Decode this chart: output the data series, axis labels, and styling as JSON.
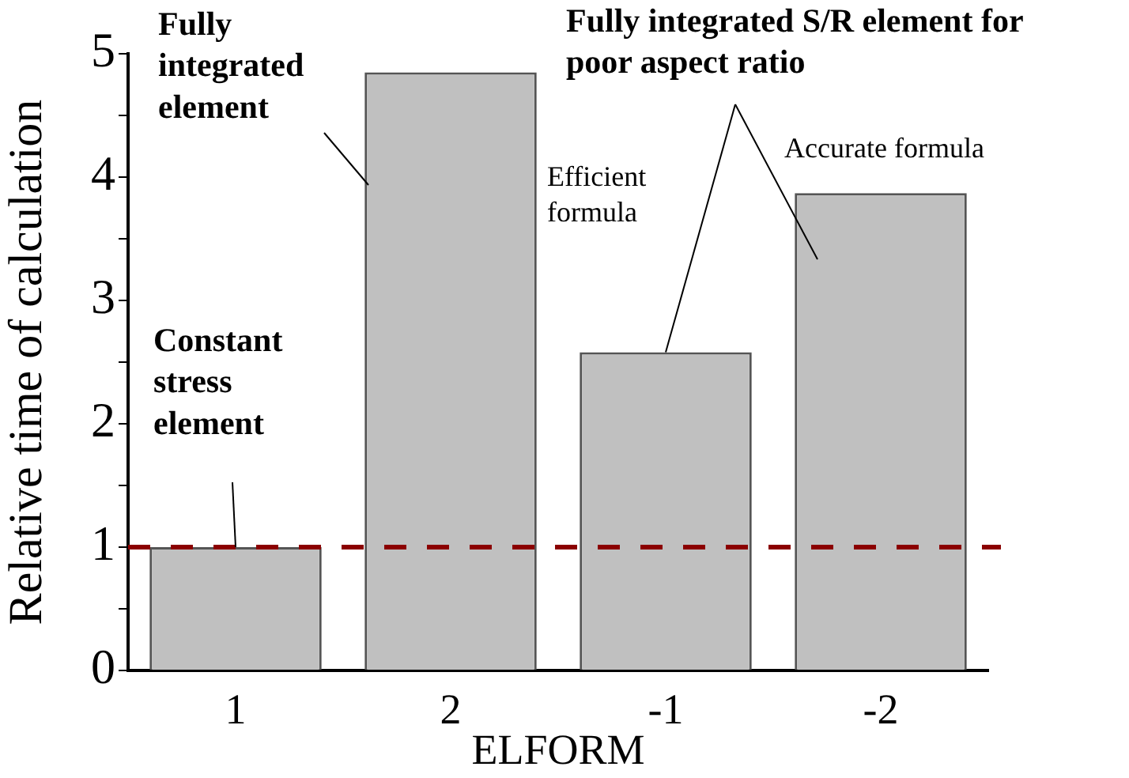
{
  "chart_data": {
    "type": "bar",
    "xlabel": "ELFORM",
    "ylabel": "Relative time of calculation",
    "categories": [
      "1",
      "2",
      "-1",
      "-2"
    ],
    "values": [
      1.0,
      4.85,
      2.58,
      3.87
    ],
    "color": "#c0c0c0",
    "ylim": [
      0,
      5
    ],
    "yticks": [
      0,
      {
        "value": 0.5,
        "label": null
      },
      1,
      {
        "value": 1.5,
        "label": null
      },
      2,
      {
        "value": 2.5,
        "label": null
      },
      3,
      {
        "value": 3.5,
        "label": null
      },
      4,
      {
        "value": 4.5,
        "label": null
      },
      5
    ],
    "ref_lines": [
      {
        "axis": "y",
        "value": 1,
        "color": "#8b0000",
        "line_style": "dashed"
      }
    ],
    "annotations": [
      "Fully integrated element",
      {
        "text": "Constant stress element",
        "x": "1",
        "y": 1
      },
      {
        "text": "Fully integrated S/R element for poor aspect ratio",
        "x": "-1",
        "y": 2.58
      },
      "Efficient formula",
      "Accurate formula"
    ]
  }
}
